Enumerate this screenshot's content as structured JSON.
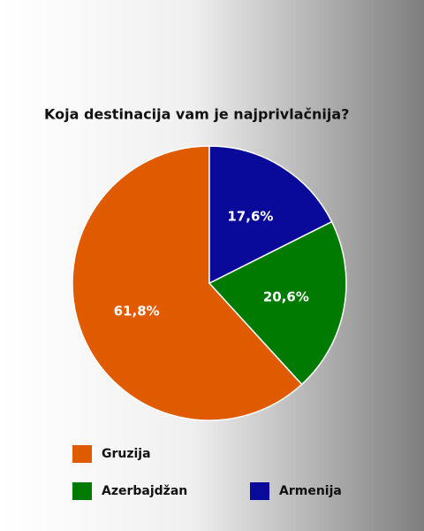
{
  "chart_data": {
    "type": "pie",
    "title": "Koja destinacija vam je najprivlačnija?",
    "categories": [
      "Gruzija",
      "Azerbajdžan",
      "Armenija"
    ],
    "values": [
      61.8,
      20.6,
      17.6
    ],
    "value_labels": [
      "61,8%",
      "20,6%",
      "17,6%"
    ],
    "colors": [
      "#e05a00",
      "#007a00",
      "#0a0a9a"
    ]
  }
}
